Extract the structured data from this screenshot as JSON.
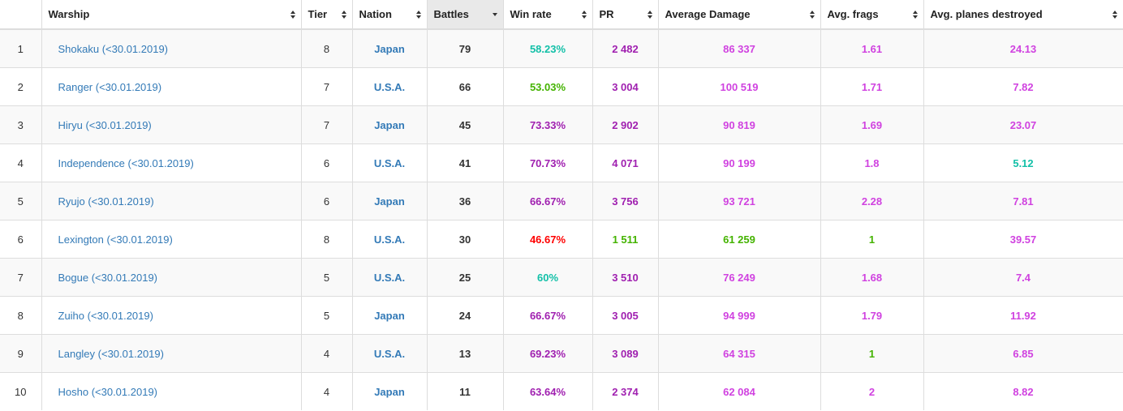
{
  "colors": {
    "blue_link": "#337ab7",
    "teal": "#13c0a8",
    "green": "#44b300",
    "purple": "#a020b0",
    "magenta": "#d042e0",
    "red": "#ff0000"
  },
  "table": {
    "columns": [
      {
        "key": "index",
        "label": ""
      },
      {
        "key": "warship",
        "label": "Warship"
      },
      {
        "key": "tier",
        "label": "Tier"
      },
      {
        "key": "nation",
        "label": "Nation"
      },
      {
        "key": "battles",
        "label": "Battles"
      },
      {
        "key": "win_rate",
        "label": "Win rate"
      },
      {
        "key": "pr",
        "label": "PR"
      },
      {
        "key": "avg_damage",
        "label": "Average Damage"
      },
      {
        "key": "avg_frags",
        "label": "Avg. frags"
      },
      {
        "key": "avg_planes",
        "label": "Avg. planes destroyed"
      }
    ],
    "sorted_column": "battles",
    "sort_direction": "desc",
    "rows": [
      {
        "index": "1",
        "warship": "Shokaku (<30.01.2019)",
        "tier": "8",
        "nation": "Japan",
        "battles": "79",
        "win_rate": "58.23%",
        "win_rate_color": "#13c0a8",
        "pr": "2 482",
        "pr_color": "#a020b0",
        "avg_damage": "86 337",
        "avg_damage_color": "#d042e0",
        "avg_frags": "1.61",
        "avg_frags_color": "#d042e0",
        "avg_planes": "24.13",
        "avg_planes_color": "#d042e0"
      },
      {
        "index": "2",
        "warship": "Ranger (<30.01.2019)",
        "tier": "7",
        "nation": "U.S.A.",
        "battles": "66",
        "win_rate": "53.03%",
        "win_rate_color": "#44b300",
        "pr": "3 004",
        "pr_color": "#a020b0",
        "avg_damage": "100 519",
        "avg_damage_color": "#d042e0",
        "avg_frags": "1.71",
        "avg_frags_color": "#d042e0",
        "avg_planes": "7.82",
        "avg_planes_color": "#d042e0"
      },
      {
        "index": "3",
        "warship": "Hiryu (<30.01.2019)",
        "tier": "7",
        "nation": "Japan",
        "battles": "45",
        "win_rate": "73.33%",
        "win_rate_color": "#a020b0",
        "pr": "2 902",
        "pr_color": "#a020b0",
        "avg_damage": "90 819",
        "avg_damage_color": "#d042e0",
        "avg_frags": "1.69",
        "avg_frags_color": "#d042e0",
        "avg_planes": "23.07",
        "avg_planes_color": "#d042e0"
      },
      {
        "index": "4",
        "warship": "Independence (<30.01.2019)",
        "tier": "6",
        "nation": "U.S.A.",
        "battles": "41",
        "win_rate": "70.73%",
        "win_rate_color": "#a020b0",
        "pr": "4 071",
        "pr_color": "#a020b0",
        "avg_damage": "90 199",
        "avg_damage_color": "#d042e0",
        "avg_frags": "1.8",
        "avg_frags_color": "#d042e0",
        "avg_planes": "5.12",
        "avg_planes_color": "#13c0a8"
      },
      {
        "index": "5",
        "warship": "Ryujo (<30.01.2019)",
        "tier": "6",
        "nation": "Japan",
        "battles": "36",
        "win_rate": "66.67%",
        "win_rate_color": "#a020b0",
        "pr": "3 756",
        "pr_color": "#a020b0",
        "avg_damage": "93 721",
        "avg_damage_color": "#d042e0",
        "avg_frags": "2.28",
        "avg_frags_color": "#d042e0",
        "avg_planes": "7.81",
        "avg_planes_color": "#d042e0"
      },
      {
        "index": "6",
        "warship": "Lexington (<30.01.2019)",
        "tier": "8",
        "nation": "U.S.A.",
        "battles": "30",
        "win_rate": "46.67%",
        "win_rate_color": "#ff0000",
        "pr": "1 511",
        "pr_color": "#44b300",
        "avg_damage": "61 259",
        "avg_damage_color": "#44b300",
        "avg_frags": "1",
        "avg_frags_color": "#44b300",
        "avg_planes": "39.57",
        "avg_planes_color": "#d042e0"
      },
      {
        "index": "7",
        "warship": "Bogue (<30.01.2019)",
        "tier": "5",
        "nation": "U.S.A.",
        "battles": "25",
        "win_rate": "60%",
        "win_rate_color": "#13c0a8",
        "pr": "3 510",
        "pr_color": "#a020b0",
        "avg_damage": "76 249",
        "avg_damage_color": "#d042e0",
        "avg_frags": "1.68",
        "avg_frags_color": "#d042e0",
        "avg_planes": "7.4",
        "avg_planes_color": "#d042e0"
      },
      {
        "index": "8",
        "warship": "Zuiho (<30.01.2019)",
        "tier": "5",
        "nation": "Japan",
        "battles": "24",
        "win_rate": "66.67%",
        "win_rate_color": "#a020b0",
        "pr": "3 005",
        "pr_color": "#a020b0",
        "avg_damage": "94 999",
        "avg_damage_color": "#d042e0",
        "avg_frags": "1.79",
        "avg_frags_color": "#d042e0",
        "avg_planes": "11.92",
        "avg_planes_color": "#d042e0"
      },
      {
        "index": "9",
        "warship": "Langley (<30.01.2019)",
        "tier": "4",
        "nation": "U.S.A.",
        "battles": "13",
        "win_rate": "69.23%",
        "win_rate_color": "#a020b0",
        "pr": "3 089",
        "pr_color": "#a020b0",
        "avg_damage": "64 315",
        "avg_damage_color": "#d042e0",
        "avg_frags": "1",
        "avg_frags_color": "#44b300",
        "avg_planes": "6.85",
        "avg_planes_color": "#d042e0"
      },
      {
        "index": "10",
        "warship": "Hosho (<30.01.2019)",
        "tier": "4",
        "nation": "Japan",
        "battles": "11",
        "win_rate": "63.64%",
        "win_rate_color": "#a020b0",
        "pr": "2 374",
        "pr_color": "#a020b0",
        "avg_damage": "62 084",
        "avg_damage_color": "#d042e0",
        "avg_frags": "2",
        "avg_frags_color": "#d042e0",
        "avg_planes": "8.82",
        "avg_planes_color": "#d042e0"
      }
    ]
  }
}
